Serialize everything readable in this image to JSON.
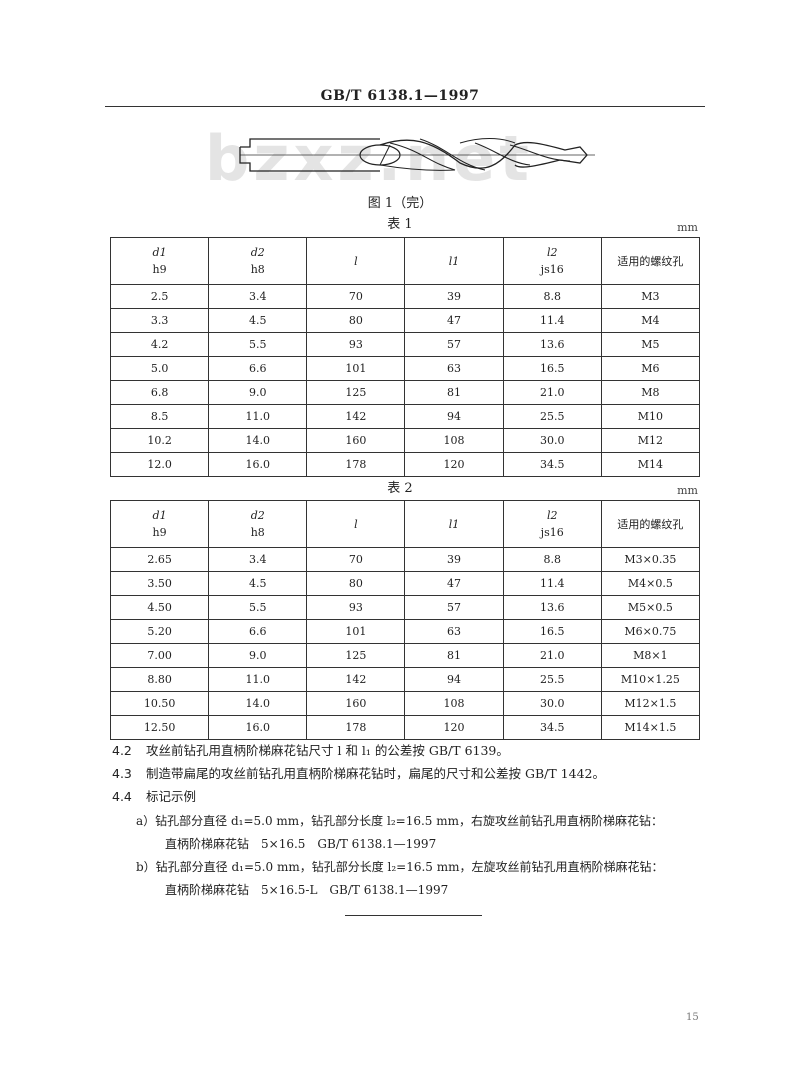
{
  "header": {
    "standard": "GB/T 6138.1—1997"
  },
  "watermark": "bzxz.net",
  "figure": {
    "caption": "图 1（完）",
    "icon": "step-drill-drawing"
  },
  "table1": {
    "title": "表 1",
    "unit": "mm",
    "headers": [
      [
        "d1",
        "h9"
      ],
      [
        "d2",
        "h8"
      ],
      [
        "l",
        ""
      ],
      [
        "l1",
        ""
      ],
      [
        "l2",
        "js16"
      ],
      [
        "适用的螺纹孔",
        ""
      ]
    ],
    "rows": [
      [
        "2.5",
        "3.4",
        "70",
        "39",
        "8.8",
        "M3"
      ],
      [
        "3.3",
        "4.5",
        "80",
        "47",
        "11.4",
        "M4"
      ],
      [
        "4.2",
        "5.5",
        "93",
        "57",
        "13.6",
        "M5"
      ],
      [
        "5.0",
        "6.6",
        "101",
        "63",
        "16.5",
        "M6"
      ],
      [
        "6.8",
        "9.0",
        "125",
        "81",
        "21.0",
        "M8"
      ],
      [
        "8.5",
        "11.0",
        "142",
        "94",
        "25.5",
        "M10"
      ],
      [
        "10.2",
        "14.0",
        "160",
        "108",
        "30.0",
        "M12"
      ],
      [
        "12.0",
        "16.0",
        "178",
        "120",
        "34.5",
        "M14"
      ]
    ]
  },
  "table2": {
    "title": "表 2",
    "unit": "mm",
    "headers": [
      [
        "d1",
        "h9"
      ],
      [
        "d2",
        "h8"
      ],
      [
        "l",
        ""
      ],
      [
        "l1",
        ""
      ],
      [
        "l2",
        "js16"
      ],
      [
        "适用的螺纹孔",
        ""
      ]
    ],
    "rows": [
      [
        "2.65",
        "3.4",
        "70",
        "39",
        "8.8",
        "M3×0.35"
      ],
      [
        "3.50",
        "4.5",
        "80",
        "47",
        "11.4",
        "M4×0.5"
      ],
      [
        "4.50",
        "5.5",
        "93",
        "57",
        "13.6",
        "M5×0.5"
      ],
      [
        "5.20",
        "6.6",
        "101",
        "63",
        "16.5",
        "M6×0.75"
      ],
      [
        "7.00",
        "9.0",
        "125",
        "81",
        "21.0",
        "M8×1"
      ],
      [
        "8.80",
        "11.0",
        "142",
        "94",
        "25.5",
        "M10×1.25"
      ],
      [
        "10.50",
        "14.0",
        "160",
        "108",
        "30.0",
        "M12×1.5"
      ],
      [
        "12.50",
        "16.0",
        "178",
        "120",
        "34.5",
        "M14×1.5"
      ]
    ]
  },
  "sections": [
    {
      "num": "4.2",
      "text": "攻丝前钻孔用直柄阶梯麻花钻尺寸 l 和 l₁ 的公差按 GB/T 6139。"
    },
    {
      "num": "4.3",
      "text": "制造带扁尾的攻丝前钻孔用直柄阶梯麻花钻时，扁尾的尺寸和公差按 GB/T 1442。"
    },
    {
      "num": "4.4",
      "text": "标记示例"
    }
  ],
  "examples": [
    {
      "line": "a）钻孔部分直径 d₁=5.0 mm，钻孔部分长度 l₂=16.5 mm，右旋攻丝前钻孔用直柄阶梯麻花钻：",
      "mark": "直柄阶梯麻花钻　5×16.5　GB/T 6138.1—1997"
    },
    {
      "line": "b）钻孔部分直径 d₁=5.0 mm，钻孔部分长度 l₂=16.5 mm，左旋攻丝前钻孔用直柄阶梯麻花钻：",
      "mark": "直柄阶梯麻花钻　5×16.5-L　GB/T 6138.1—1997"
    }
  ],
  "page_number": "15"
}
